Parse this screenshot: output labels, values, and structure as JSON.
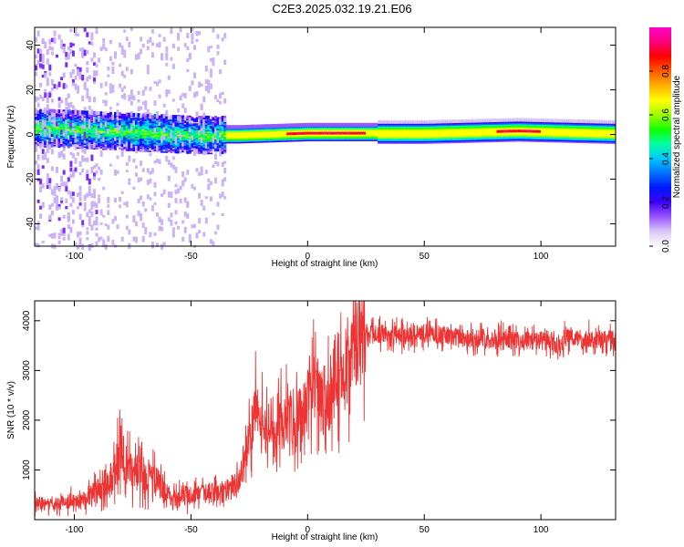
{
  "title": "C2E3.2025.032.19.21.E06",
  "chart_data": [
    {
      "type": "heatmap",
      "xlabel": "Height of straight line (km)",
      "ylabel": "Frequency (Hz)",
      "xlim": [
        -117,
        132
      ],
      "ylim": [
        -50,
        48
      ],
      "xticks": [
        -100,
        -50,
        0,
        50,
        100
      ],
      "yticks": [
        -40,
        -20,
        0,
        20,
        40
      ],
      "colorbar": {
        "label": "Normalized spectral amplitude",
        "range": [
          0.0,
          1.0
        ],
        "ticks": [
          0.0,
          0.2,
          0.4,
          0.6,
          0.8
        ],
        "tick_labels": [
          "0.0",
          "0.2",
          "0.4",
          "0.6",
          "0.8"
        ],
        "colormap": [
          "#ffffff",
          "#d9c8f7",
          "#9b57ff",
          "#3f00ff",
          "#0016ff",
          "#0070ff",
          "#00c8ff",
          "#00ffa0",
          "#10ff00",
          "#a0ff00",
          "#ffff00",
          "#ffb000",
          "#ff5a00",
          "#ff0000",
          "#ff007a",
          "#ff00c8"
        ]
      },
      "description_points": {
        "band_center_hz": [
          {
            "x": -110,
            "f": 3
          },
          {
            "x": -90,
            "f": 2
          },
          {
            "x": -70,
            "f": 1
          },
          {
            "x": -50,
            "f": 0
          },
          {
            "x": -30,
            "f": 0
          },
          {
            "x": 0,
            "f": 1
          },
          {
            "x": 50,
            "f": 1
          },
          {
            "x": 90,
            "f": 2
          },
          {
            "x": 130,
            "f": 1
          }
        ]
      }
    },
    {
      "type": "line",
      "xlabel": "Height of straight line (km)",
      "ylabel": "SNR (10 * v/v)",
      "xlim": [
        -117,
        132
      ],
      "ylim": [
        0,
        4400
      ],
      "xticks": [
        -100,
        -50,
        0,
        50,
        100
      ],
      "yticks": [
        1000,
        2000,
        3000,
        4000
      ],
      "color": "#ee3333",
      "series": [
        {
          "x": [
            -117,
            -110,
            -100,
            -95,
            -90,
            -85,
            -82,
            -80,
            -78,
            -75,
            -70,
            -65,
            -60,
            -55,
            -50,
            -45,
            -40,
            -35,
            -30,
            -27,
            -25,
            -23,
            -22,
            -20,
            -18,
            -15,
            -12,
            -10,
            -8,
            -5,
            -3,
            0,
            3,
            5,
            8,
            10,
            12,
            15,
            18,
            20,
            25,
            28,
            30,
            40,
            50,
            60,
            70,
            80,
            90,
            100,
            105,
            108,
            110,
            115,
            120,
            125,
            132
          ],
          "values": [
            350,
            300,
            400,
            450,
            600,
            800,
            1100,
            1500,
            1000,
            1000,
            900,
            800,
            500,
            450,
            500,
            500,
            550,
            600,
            700,
            1200,
            1600,
            2000,
            2500,
            2000,
            1800,
            1600,
            1900,
            2000,
            2100,
            2000,
            2100,
            2300,
            2700,
            2400,
            2300,
            2500,
            3000,
            2900,
            3100,
            3400,
            3600,
            3750,
            3750,
            3700,
            3750,
            3700,
            3650,
            3650,
            3600,
            3600,
            3550,
            3450,
            3650,
            3650,
            3650,
            3600,
            3650
          ]
        }
      ]
    }
  ]
}
